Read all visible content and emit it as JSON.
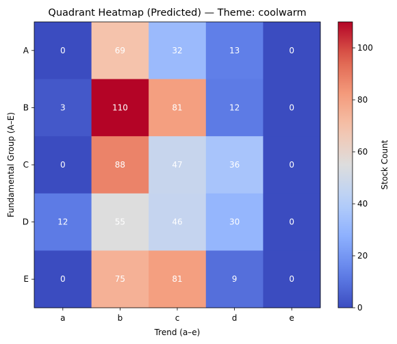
{
  "chart_data": {
    "type": "heatmap",
    "title": "Quadrant Heatmap (Predicted) — Theme: coolwarm",
    "xlabel": "Trend (a–e)",
    "ylabel": "Fundamental Group (A–E)",
    "x_categories": [
      "a",
      "b",
      "c",
      "d",
      "e"
    ],
    "y_categories": [
      "A",
      "B",
      "C",
      "D",
      "E"
    ],
    "values": [
      [
        0,
        69,
        32,
        13,
        0
      ],
      [
        3,
        110,
        81,
        12,
        0
      ],
      [
        0,
        88,
        47,
        36,
        0
      ],
      [
        12,
        55,
        46,
        30,
        0
      ],
      [
        0,
        75,
        81,
        9,
        0
      ]
    ],
    "colormap": "coolwarm",
    "colorbar": {
      "label": "Stock Count",
      "range": [
        0,
        110
      ],
      "ticks": [
        0,
        20,
        40,
        60,
        80,
        100
      ]
    },
    "grid": false
  }
}
